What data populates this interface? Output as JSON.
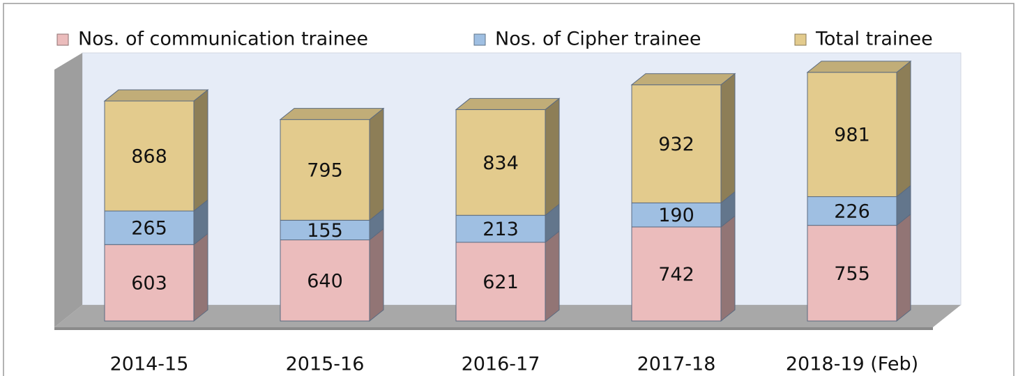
{
  "chart_data": {
    "type": "bar",
    "stacked": true,
    "categories": [
      "2014-15",
      "2015-16",
      "2016-17",
      "2017-18",
      "2018-19 (Feb)"
    ],
    "series": [
      {
        "name": "Nos. of communication trainee",
        "color": "#ebbcbc",
        "values": [
          603,
          640,
          621,
          742,
          755
        ]
      },
      {
        "name": "Nos. of Cipher trainee",
        "color": "#9fbfe2",
        "values": [
          265,
          155,
          213,
          190,
          226
        ]
      },
      {
        "name": "Total trainee",
        "color": "#e3cb8d",
        "values": [
          868,
          795,
          834,
          932,
          981
        ]
      }
    ]
  }
}
